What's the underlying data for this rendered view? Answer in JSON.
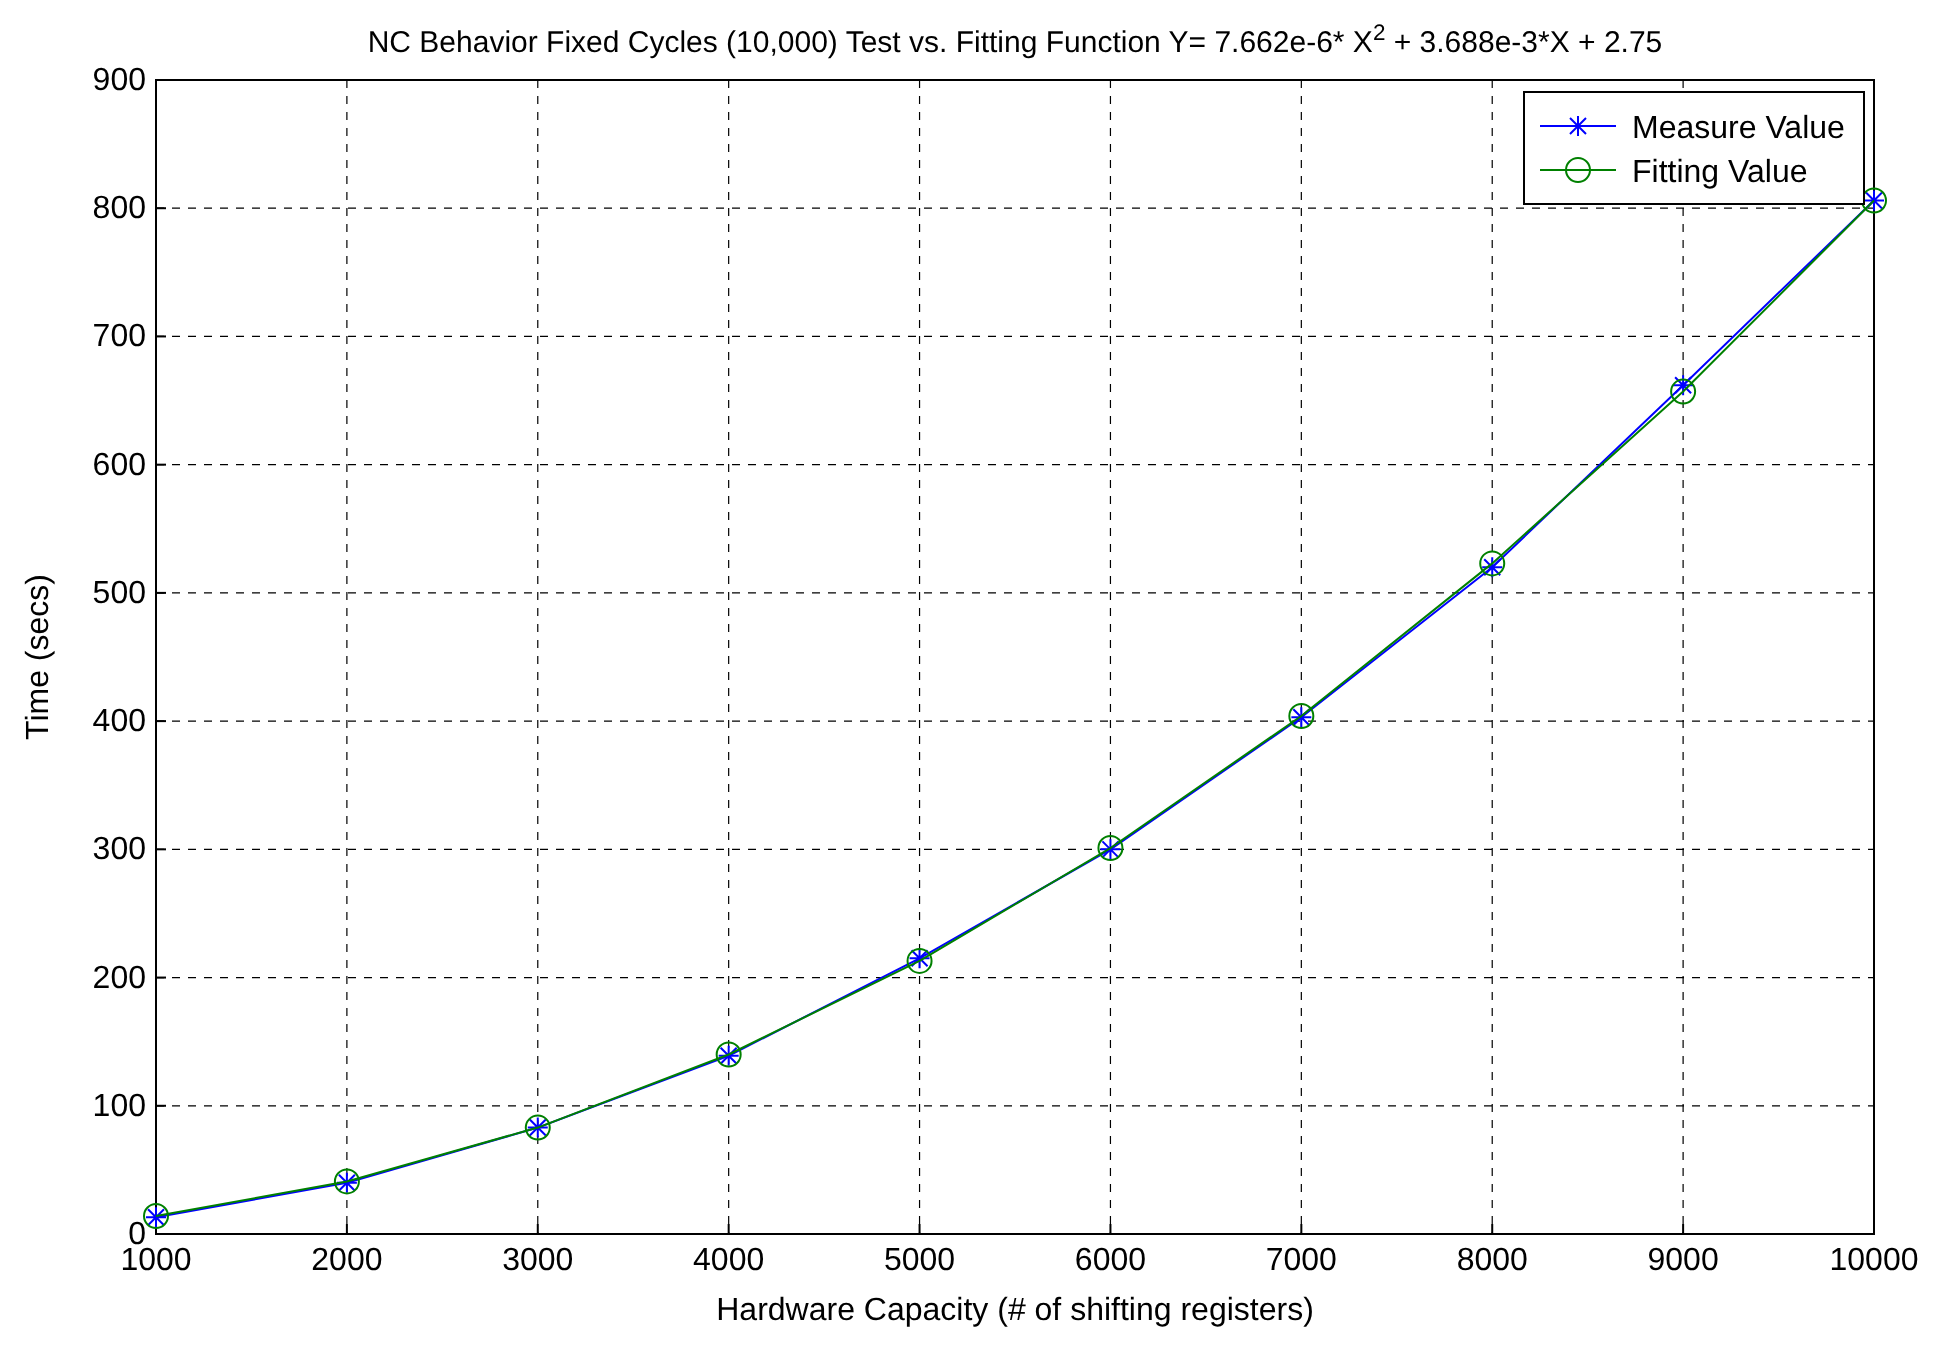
{
  "chart_data": {
    "type": "line",
    "title": "NC Behavior Fixed Cycles (10,000) Test vs. Fitting Function Y= 7.662e-6* X$^{2}$ + 3.688e-3*X + 2.75",
    "xlabel": "Hardware Capacity (# of shifting registers)",
    "ylabel": "Time (secs)",
    "x": [
      1000,
      2000,
      3000,
      4000,
      5000,
      6000,
      7000,
      8000,
      9000,
      10000
    ],
    "series": [
      {
        "name": "Measure Value",
        "color": "#0000ff",
        "marker": "cross",
        "values": [
          13,
          40,
          83,
          139,
          215,
          300,
          403,
          520,
          662,
          806
        ]
      },
      {
        "name": "Fitting Value",
        "color": "#008000",
        "marker": "circle",
        "values": [
          14,
          41,
          83,
          140,
          213,
          301,
          404,
          523,
          657,
          806
        ]
      }
    ],
    "xlim": [
      1000,
      10000
    ],
    "xticks": [
      1000,
      2000,
      3000,
      4000,
      5000,
      6000,
      7000,
      8000,
      9000,
      10000
    ],
    "ylim": [
      0,
      900
    ],
    "yticks": [
      0,
      100,
      200,
      300,
      400,
      500,
      600,
      700,
      800,
      900
    ],
    "grid": true,
    "line_style": "solid",
    "legend": "top right"
  }
}
